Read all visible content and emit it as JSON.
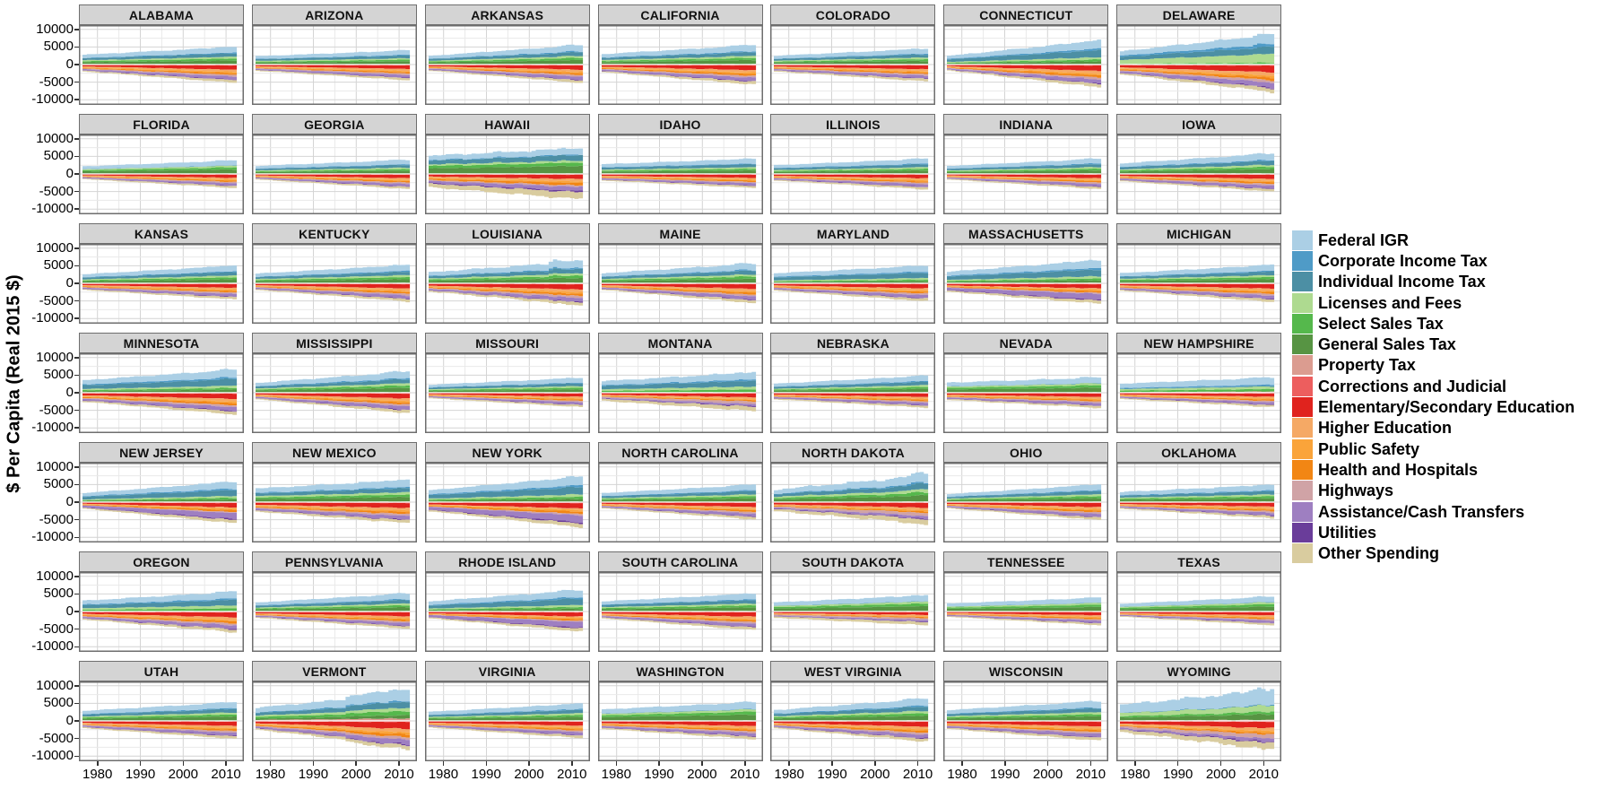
{
  "figure": {
    "y_axis_title": "$ Per Capita (Real 2015 $)"
  },
  "chart_data": {
    "type": "area",
    "variant": "stacked-area-small-multiples-by-state",
    "description": "State government revenue (stacked above zero) and spending (stacked below zero) per capita in real 2015 dollars, 1977-2012, one panel per state (49 states, no Alaska), 7x7 grid, ggplot-style facets",
    "x": {
      "start": 1977,
      "end": 2012,
      "ticks": [
        1980,
        1990,
        2000,
        2010
      ],
      "labels": [
        "1980",
        "1990",
        "2000",
        "2010"
      ]
    },
    "y": {
      "ticks": [
        10000,
        5000,
        0,
        -5000,
        -10000
      ],
      "labels": [
        "10000",
        "5000",
        "0",
        "-5000",
        "-10000"
      ],
      "range": [
        -11500,
        11500
      ],
      "minor": [
        7500,
        2500,
        -2500,
        -7500
      ]
    },
    "grid": {
      "major_color": "#d4d4d4",
      "minor_color": "#e9e9e9",
      "panel_border": "#6e6e6e",
      "strip_fill": "#d4d4d4",
      "zero_gap_color": "#ffffff"
    },
    "legend_position": "right",
    "categories": [
      {
        "name": "Federal IGR",
        "color": "#abcfe5",
        "group": "revenue"
      },
      {
        "name": "Corporate Income Tax",
        "color": "#4f9bc7",
        "group": "revenue"
      },
      {
        "name": "Individual Income Tax",
        "color": "#4c8fa4",
        "group": "revenue"
      },
      {
        "name": "Licenses and Fees",
        "color": "#aeda90",
        "group": "revenue"
      },
      {
        "name": "Select Sales Tax",
        "color": "#55b84c",
        "group": "revenue"
      },
      {
        "name": "General Sales Tax",
        "color": "#579443",
        "group": "revenue"
      },
      {
        "name": "Property Tax",
        "color": "#db9c90",
        "group": "revenue"
      },
      {
        "name": "Corrections and Judicial",
        "color": "#ed5e5e",
        "group": "spending"
      },
      {
        "name": "Elementary/Secondary Education",
        "color": "#e0231e",
        "group": "spending"
      },
      {
        "name": "Higher Education",
        "color": "#f5a965",
        "group": "spending"
      },
      {
        "name": "Public Safety",
        "color": "#faa43a",
        "group": "spending"
      },
      {
        "name": "Health and Hospitals",
        "color": "#f28614",
        "group": "spending"
      },
      {
        "name": "Highways",
        "color": "#d0a3a6",
        "group": "spending"
      },
      {
        "name": "Assistance/Cash Transfers",
        "color": "#9e7fc1",
        "group": "spending"
      },
      {
        "name": "Utilities",
        "color": "#6a3d9a",
        "group": "spending"
      },
      {
        "name": "Other Spending",
        "color": "#d9cc9f",
        "group": "spending"
      }
    ],
    "stack_order": {
      "positive_from_zero_up": [
        6,
        5,
        4,
        3,
        2,
        1,
        0
      ],
      "negative_from_zero_down": [
        7,
        8,
        9,
        10,
        11,
        12,
        13,
        14,
        15
      ]
    },
    "share_profiles": {
      "pos": {
        "default": [
          0.02,
          0.21,
          0.11,
          0.1,
          0.19,
          0.05,
          0.32
        ],
        "no_income": [
          0.02,
          0.31,
          0.16,
          0.13,
          0.0,
          0.01,
          0.37
        ],
        "no_sales": [
          0.03,
          0.0,
          0.13,
          0.14,
          0.28,
          0.07,
          0.35
        ],
        "income_heavy": [
          0.015,
          0.115,
          0.08,
          0.09,
          0.29,
          0.07,
          0.34
        ],
        "delaware": [
          0.01,
          0.0,
          0.05,
          0.29,
          0.23,
          0.1,
          0.32
        ],
        "nh": [
          0.09,
          0.0,
          0.15,
          0.16,
          0.05,
          0.08,
          0.47
        ],
        "vt": [
          0.08,
          0.1,
          0.13,
          0.1,
          0.19,
          0.04,
          0.36
        ],
        "hawaii_pos": [
          0.01,
          0.3,
          0.13,
          0.08,
          0.21,
          0.03,
          0.24
        ],
        "wyo": [
          0.03,
          0.18,
          0.08,
          0.2,
          0.0,
          0.01,
          0.5
        ]
      },
      "neg": {
        "default": [
          0.04,
          0.24,
          0.12,
          0.07,
          0.1,
          0.09,
          0.17,
          0.03,
          0.14
        ],
        "hawaii_neg": [
          0.03,
          0.17,
          0.1,
          0.06,
          0.1,
          0.06,
          0.16,
          0.05,
          0.27
        ],
        "assist_heavy": [
          0.04,
          0.21,
          0.06,
          0.07,
          0.09,
          0.05,
          0.28,
          0.05,
          0.15
        ],
        "hwy_heavy": [
          0.03,
          0.22,
          0.1,
          0.06,
          0.07,
          0.14,
          0.11,
          0.04,
          0.23
        ]
      }
    },
    "states": [
      {
        "name": "ALABAMA",
        "p": [
          2800,
          5000
        ],
        "g": [
          2000,
          5200
        ],
        "pp": "default",
        "np": "default",
        "w": 0.04
      },
      {
        "name": "ARIZONA",
        "p": [
          2400,
          4000
        ],
        "g": [
          1800,
          4500
        ],
        "pp": "default",
        "np": "default",
        "w": 0.04
      },
      {
        "name": "ARKANSAS",
        "p": [
          2500,
          5500
        ],
        "g": [
          1800,
          5200
        ],
        "pp": "default",
        "np": "default",
        "w": 0.04
      },
      {
        "name": "CALIFORNIA",
        "p": [
          3000,
          5500
        ],
        "g": [
          2200,
          5700
        ],
        "pp": "default",
        "np": "default",
        "w": 0.04
      },
      {
        "name": "COLORADO",
        "p": [
          2500,
          4500
        ],
        "g": [
          2000,
          4800
        ],
        "pp": "default",
        "np": "default",
        "w": 0.04
      },
      {
        "name": "CONNECTICUT",
        "p": [
          2500,
          6800
        ],
        "g": [
          1700,
          6500
        ],
        "pp": "income_heavy",
        "np": "default",
        "w": 0.05
      },
      {
        "name": "DELAWARE",
        "p": [
          3800,
          8500
        ],
        "g": [
          2800,
          7800
        ],
        "pp": "delaware",
        "np": "default",
        "w": 0.05
      },
      {
        "name": "FLORIDA",
        "p": [
          2200,
          3800
        ],
        "g": [
          1500,
          4000
        ],
        "pp": "no_income",
        "np": "default",
        "w": 0.04
      },
      {
        "name": "GEORGIA",
        "p": [
          2300,
          4000
        ],
        "g": [
          1600,
          4300
        ],
        "pp": "default",
        "np": "default",
        "w": 0.04
      },
      {
        "name": "HAWAII",
        "p": [
          5200,
          7300
        ],
        "g": [
          3800,
          7200
        ],
        "pp": "hawaii_pos",
        "np": "hawaii_neg",
        "w": 0.06
      },
      {
        "name": "IDAHO",
        "p": [
          2800,
          4300
        ],
        "g": [
          1900,
          4000
        ],
        "pp": "default",
        "np": "default",
        "w": 0.04
      },
      {
        "name": "ILLINOIS",
        "p": [
          2500,
          4300
        ],
        "g": [
          1900,
          4400
        ],
        "pp": "default",
        "np": "default",
        "w": 0.04
      },
      {
        "name": "INDIANA",
        "p": [
          2300,
          4300
        ],
        "g": [
          1600,
          4300
        ],
        "pp": "default",
        "np": "default",
        "w": 0.04
      },
      {
        "name": "IOWA",
        "p": [
          3000,
          5800
        ],
        "g": [
          2100,
          5000
        ],
        "pp": "default",
        "np": "default",
        "w": 0.04
      },
      {
        "name": "KANSAS",
        "p": [
          2600,
          5000
        ],
        "g": [
          1900,
          4600
        ],
        "pp": "default",
        "np": "default",
        "w": 0.04
      },
      {
        "name": "KENTUCKY",
        "p": [
          2800,
          5200
        ],
        "g": [
          1900,
          5200
        ],
        "pp": "default",
        "np": "default",
        "w": 0.04
      },
      {
        "name": "LOUISIANA",
        "p": [
          3200,
          6200
        ],
        "g": [
          2400,
          6200
        ],
        "pp": "default",
        "np": "default",
        "w": 0.07,
        "sp": [
          29,
          0.2
        ]
      },
      {
        "name": "MAINE",
        "p": [
          2900,
          5600
        ],
        "g": [
          1900,
          5600
        ],
        "pp": "default",
        "np": "default",
        "w": 0.05
      },
      {
        "name": "MARYLAND",
        "p": [
          2900,
          5000
        ],
        "g": [
          2100,
          5100
        ],
        "pp": "income_heavy",
        "np": "default",
        "w": 0.04
      },
      {
        "name": "MASSACHUSETTS",
        "p": [
          3300,
          6600
        ],
        "g": [
          2400,
          5800
        ],
        "pp": "income_heavy",
        "np": "assist_heavy",
        "w": 0.05
      },
      {
        "name": "MICHIGAN",
        "p": [
          2900,
          5200
        ],
        "g": [
          2100,
          5300
        ],
        "pp": "default",
        "np": "default",
        "w": 0.04
      },
      {
        "name": "MINNESOTA",
        "p": [
          3600,
          6500
        ],
        "g": [
          2600,
          6200
        ],
        "pp": "income_heavy",
        "np": "default",
        "w": 0.04
      },
      {
        "name": "MISSISSIPPI",
        "p": [
          2800,
          6000
        ],
        "g": [
          1900,
          5800
        ],
        "pp": "default",
        "np": "default",
        "w": 0.05
      },
      {
        "name": "MISSOURI",
        "p": [
          2300,
          4200
        ],
        "g": [
          1600,
          4100
        ],
        "pp": "default",
        "np": "default",
        "w": 0.04
      },
      {
        "name": "MONTANA",
        "p": [
          3300,
          5800
        ],
        "g": [
          2300,
          5200
        ],
        "pp": "no_sales",
        "np": "hwy_heavy",
        "w": 0.06
      },
      {
        "name": "NEBRASKA",
        "p": [
          2600,
          4800
        ],
        "g": [
          1900,
          4300
        ],
        "pp": "default",
        "np": "default",
        "w": 0.04
      },
      {
        "name": "NEVADA",
        "p": [
          2900,
          4300
        ],
        "g": [
          2100,
          4300
        ],
        "pp": "no_income",
        "np": "default",
        "w": 0.06
      },
      {
        "name": "NEW HAMPSHIRE",
        "p": [
          2600,
          4300
        ],
        "g": [
          1800,
          4100
        ],
        "pp": "nh",
        "np": "default",
        "w": 0.05
      },
      {
        "name": "NEW JERSEY",
        "p": [
          2600,
          5800
        ],
        "g": [
          1900,
          6000
        ],
        "pp": "income_heavy",
        "np": "assist_heavy",
        "w": 0.04
      },
      {
        "name": "NEW MEXICO",
        "p": [
          3900,
          6300
        ],
        "g": [
          2700,
          6000
        ],
        "pp": "default",
        "np": "default",
        "w": 0.05
      },
      {
        "name": "NEW YORK",
        "p": [
          3400,
          7200
        ],
        "g": [
          2600,
          7200
        ],
        "pp": "income_heavy",
        "np": "assist_heavy",
        "w": 0.04
      },
      {
        "name": "NORTH CAROLINA",
        "p": [
          2600,
          4900
        ],
        "g": [
          1800,
          4900
        ],
        "pp": "default",
        "np": "default",
        "w": 0.04
      },
      {
        "name": "NORTH DAKOTA",
        "p": [
          3600,
          7500
        ],
        "g": [
          2600,
          6200
        ],
        "pp": "default",
        "np": "hwy_heavy",
        "w": 0.08,
        "sp": [
          34,
          0.18
        ]
      },
      {
        "name": "OHIO",
        "p": [
          2300,
          5000
        ],
        "g": [
          1800,
          5100
        ],
        "pp": "default",
        "np": "default",
        "w": 0.04
      },
      {
        "name": "OKLAHOMA",
        "p": [
          2900,
          4900
        ],
        "g": [
          1900,
          4600
        ],
        "pp": "default",
        "np": "default",
        "w": 0.05
      },
      {
        "name": "OREGON",
        "p": [
          3100,
          5600
        ],
        "g": [
          2300,
          5900
        ],
        "pp": "no_sales",
        "np": "default",
        "w": 0.05
      },
      {
        "name": "PENNSYLVANIA",
        "p": [
          2600,
          5100
        ],
        "g": [
          1800,
          4900
        ],
        "pp": "default",
        "np": "default",
        "w": 0.04
      },
      {
        "name": "RHODE ISLAND",
        "p": [
          2900,
          6100
        ],
        "g": [
          2000,
          5700
        ],
        "pp": "income_heavy",
        "np": "assist_heavy",
        "w": 0.05
      },
      {
        "name": "SOUTH CAROLINA",
        "p": [
          2900,
          5100
        ],
        "g": [
          2000,
          5300
        ],
        "pp": "default",
        "np": "default",
        "w": 0.04
      },
      {
        "name": "SOUTH DAKOTA",
        "p": [
          2600,
          4600
        ],
        "g": [
          1800,
          3900
        ],
        "pp": "no_income",
        "np": "hwy_heavy",
        "w": 0.05
      },
      {
        "name": "TENNESSEE",
        "p": [
          2300,
          3900
        ],
        "g": [
          1500,
          3900
        ],
        "pp": "no_income",
        "np": "default",
        "w": 0.04
      },
      {
        "name": "TEXAS",
        "p": [
          2200,
          4200
        ],
        "g": [
          1500,
          3900
        ],
        "pp": "no_income",
        "np": "default",
        "w": 0.04
      },
      {
        "name": "UTAH",
        "p": [
          2900,
          5300
        ],
        "g": [
          2100,
          5100
        ],
        "pp": "default",
        "np": "default",
        "w": 0.04
      },
      {
        "name": "VERMONT",
        "p": [
          3800,
          7800
        ],
        "g": [
          2500,
          7300
        ],
        "pp": "vt",
        "np": "default",
        "w": 0.06,
        "st": [
          21,
          1.15
        ]
      },
      {
        "name": "VIRGINIA",
        "p": [
          2600,
          4900
        ],
        "g": [
          1900,
          4900
        ],
        "pp": "default",
        "np": "default",
        "w": 0.04
      },
      {
        "name": "WASHINGTON",
        "p": [
          3300,
          5300
        ],
        "g": [
          2300,
          5200
        ],
        "pp": "no_income",
        "np": "default",
        "w": 0.04
      },
      {
        "name": "WEST VIRGINIA",
        "p": [
          3100,
          6300
        ],
        "g": [
          2100,
          5900
        ],
        "pp": "default",
        "np": "default",
        "w": 0.05
      },
      {
        "name": "WISCONSIN",
        "p": [
          3100,
          5600
        ],
        "g": [
          2300,
          5600
        ],
        "pp": "default",
        "np": "default",
        "w": 0.04
      },
      {
        "name": "WYOMING",
        "p": [
          4600,
          8800
        ],
        "g": [
          3200,
          8200
        ],
        "pp": "wyo",
        "np": "hwy_heavy",
        "w": 0.09,
        "sp": [
          32,
          0.12
        ]
      }
    ]
  }
}
